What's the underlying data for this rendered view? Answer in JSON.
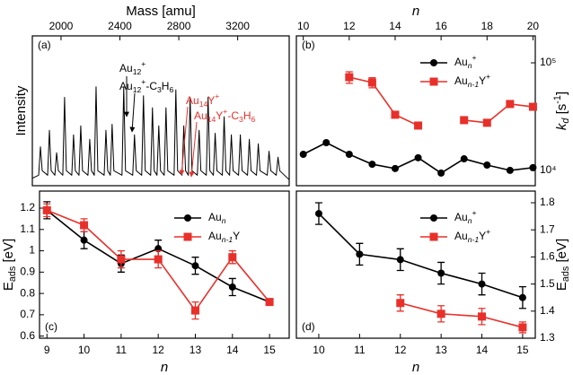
{
  "chart_data": [
    {
      "type": "line",
      "panel_label": "(a)",
      "panel_label_corner": "upper left",
      "x_label": [
        {
          "text": "Mass [amu]"
        }
      ],
      "x_axis_side": "top",
      "y_label": [
        {
          "text": "Intensity"
        }
      ],
      "y_axis_side": "left",
      "xlim": [
        1805,
        3550
      ],
      "xticks": [
        2000,
        2400,
        2800,
        3200
      ],
      "ylim": [
        0,
        1
      ],
      "x": [
        1805,
        1848,
        1860,
        1872,
        1909,
        1921,
        1933,
        1958,
        1970,
        1982,
        2012,
        2024,
        2036,
        2073,
        2085,
        2097,
        2122,
        2134,
        2146,
        2183,
        2195,
        2207,
        2226,
        2238,
        2250,
        2293,
        2305,
        2317,
        2335,
        2347,
        2359,
        2414,
        2426,
        2438,
        2487,
        2499,
        2511,
        2548,
        2560,
        2572,
        2609,
        2621,
        2633,
        2652,
        2664,
        2676,
        2701,
        2713,
        2725,
        2768,
        2780,
        2792,
        2822,
        2834,
        2846,
        2865,
        2877,
        2889,
        2926,
        2938,
        2950,
        2987,
        2999,
        3011,
        3035,
        3047,
        3059,
        3096,
        3108,
        3120,
        3145,
        3157,
        3169,
        3206,
        3218,
        3230,
        3267,
        3279,
        3291,
        3328,
        3340,
        3352,
        3401,
        3413,
        3425,
        3462,
        3474,
        3486,
        3550
      ],
      "series": [
        {
          "color": "#000000",
          "values": [
            0.05,
            0.07,
            0.26,
            0.1,
            0.07,
            0.37,
            0.1,
            0.07,
            0.22,
            0.1,
            0.07,
            0.59,
            0.1,
            0.07,
            0.34,
            0.1,
            0.07,
            0.4,
            0.1,
            0.07,
            0.31,
            0.1,
            0.07,
            0.66,
            0.1,
            0.07,
            0.37,
            0.1,
            0.07,
            0.41,
            0.1,
            0.07,
            0.66,
            0.1,
            0.07,
            0.34,
            0.1,
            0.07,
            0.6,
            0.1,
            0.07,
            0.52,
            0.1,
            0.07,
            0.4,
            0.1,
            0.07,
            0.52,
            0.1,
            0.07,
            0.64,
            0.1,
            0.07,
            0.4,
            0.1,
            0.07,
            0.59,
            0.1,
            0.07,
            0.37,
            0.1,
            0.07,
            0.59,
            0.1,
            0.07,
            0.35,
            0.1,
            0.07,
            0.46,
            0.1,
            0.07,
            0.34,
            0.1,
            0.07,
            0.34,
            0.1,
            0.07,
            0.31,
            0.1,
            0.07,
            0.28,
            0.1,
            0.07,
            0.23,
            0.1,
            0.07,
            0.19,
            0.1,
            0.04
          ]
        }
      ],
      "annotations": [
        {
          "color": "#000000",
          "runs": [
            {
              "text": "Au"
            },
            {
              "text": "12",
              "shift": "sub"
            },
            {
              "text": "+",
              "shift": "sup"
            }
          ]
        },
        {
          "color": "#000000",
          "runs": [
            {
              "text": "Au"
            },
            {
              "text": "12",
              "shift": "sub"
            },
            {
              "text": "+",
              "shift": "sup"
            },
            {
              "text": "-C"
            },
            {
              "text": "3",
              "shift": "sub"
            },
            {
              "text": "H"
            },
            {
              "text": "6",
              "shift": "sub"
            }
          ]
        },
        {
          "color": "#e8302a",
          "runs": [
            {
              "text": "Au"
            },
            {
              "text": "14",
              "shift": "sub"
            },
            {
              "text": "Y"
            },
            {
              "text": "+",
              "shift": "sup"
            }
          ]
        },
        {
          "color": "#e8302a",
          "runs": [
            {
              "text": "Au"
            },
            {
              "text": "14",
              "shift": "sub"
            },
            {
              "text": "Y"
            },
            {
              "text": "+",
              "shift": "sup"
            },
            {
              "text": "-C"
            },
            {
              "text": "3",
              "shift": "sub"
            },
            {
              "text": "H"
            },
            {
              "text": "6",
              "shift": "sub"
            }
          ]
        }
      ]
    },
    {
      "type": "line",
      "panel_label": "(b)",
      "panel_label_corner": "upper left",
      "x_label": [
        {
          "text": "n",
          "italic": true
        }
      ],
      "x_axis_side": "top",
      "y_label": [
        {
          "text": "k",
          "italic": true
        },
        {
          "text": "d",
          "shift": "sub",
          "italic": true
        },
        {
          "text": " [s"
        },
        {
          "text": "-1",
          "shift": "sup"
        },
        {
          "text": "]"
        }
      ],
      "y_axis_side": "right",
      "xlim": [
        9.7,
        20.1
      ],
      "xticks": [
        10,
        12,
        14,
        16,
        18,
        20
      ],
      "y_scale": "log",
      "ylim": [
        7200,
        178000
      ],
      "yticks": [
        {
          "value": 10000,
          "label": "10⁴"
        },
        {
          "value": 100000,
          "label": "10⁵"
        }
      ],
      "legend_corner": "upper right",
      "x": [
        10,
        11,
        12,
        13,
        14,
        15,
        16,
        17,
        18,
        19,
        20
      ],
      "series": [
        {
          "name": [
            {
              "text": "Au"
            },
            {
              "text": "n",
              "shift": "sub",
              "italic": true
            },
            {
              "text": "+",
              "shift": "sup"
            }
          ],
          "color": "#000000",
          "marker": "circle",
          "values": [
            14100,
            18100,
            14100,
            11400,
            10400,
            13100,
            9440,
            12800,
            11200,
            10000,
            10600
          ]
        },
        {
          "name": [
            {
              "text": "Au"
            },
            {
              "text": "n-1",
              "shift": "sub",
              "italic": true
            },
            {
              "text": "Y"
            },
            {
              "text": "+",
              "shift": "sup"
            }
          ],
          "color": "#e8302a",
          "marker": "square",
          "values": [
            null,
            null,
            73500,
            65600,
            32900,
            26100,
            null,
            29300,
            27700,
            41400,
            39000
          ],
          "errors": [
            null,
            null,
            9000,
            7000,
            null,
            null,
            null,
            null,
            null,
            null,
            null
          ]
        }
      ]
    },
    {
      "type": "line",
      "panel_label": "(c)",
      "panel_label_corner": "lower left",
      "x_label": [
        {
          "text": "n",
          "italic": true
        }
      ],
      "x_axis_side": "bottom",
      "y_label": [
        {
          "text": "E"
        },
        {
          "text": "ads",
          "shift": "sub"
        },
        {
          "text": " [eV]"
        }
      ],
      "y_axis_side": "left",
      "xlim": [
        8.8,
        15.53
      ],
      "xticks": [
        9,
        10,
        11,
        12,
        13,
        14,
        15
      ],
      "ylim": [
        0.59,
        1.28
      ],
      "yticks": [
        0.6,
        0.7,
        0.8,
        0.9,
        1,
        1.1,
        1.2
      ],
      "legend_corner": "upper right",
      "x": [
        9,
        10,
        11,
        12,
        13,
        14,
        15
      ],
      "series": [
        {
          "name": [
            {
              "text": "Au"
            },
            {
              "text": "n",
              "shift": "sub",
              "italic": true
            }
          ],
          "color": "#000000",
          "marker": "circle",
          "values": [
            1.19,
            1.05,
            0.94,
            1.01,
            0.93,
            0.83,
            0.76
          ],
          "errors": [
            0.04,
            0.04,
            0.04,
            0.04,
            0.04,
            0.04,
            null
          ]
        },
        {
          "name": [
            {
              "text": "Au"
            },
            {
              "text": "n-1",
              "shift": "sub",
              "italic": true
            },
            {
              "text": "Y"
            }
          ],
          "color": "#e8302a",
          "marker": "square",
          "values": [
            1.19,
            1.12,
            0.96,
            0.96,
            0.72,
            0.97,
            0.76
          ],
          "errors": [
            0.03,
            0.03,
            0.04,
            0.04,
            0.04,
            0.03,
            null
          ]
        }
      ]
    },
    {
      "type": "line",
      "panel_label": "(d)",
      "panel_label_corner": "lower left",
      "x_label": [
        {
          "text": "n",
          "italic": true
        }
      ],
      "x_axis_side": "bottom",
      "y_label": [
        {
          "text": "E"
        },
        {
          "text": "ads",
          "shift": "sub"
        },
        {
          "text": " [eV]"
        }
      ],
      "y_axis_side": "right",
      "xlim": [
        9.45,
        15.31
      ],
      "xticks": [
        10,
        11,
        12,
        13,
        14,
        15
      ],
      "ylim": [
        1.3,
        1.843
      ],
      "yticks": [
        1.3,
        1.4,
        1.5,
        1.6,
        1.7,
        1.8
      ],
      "legend_corner": "upper right",
      "x": [
        10,
        11,
        12,
        13,
        14,
        15
      ],
      "series": [
        {
          "name": [
            {
              "text": "Au"
            },
            {
              "text": "n",
              "shift": "sub",
              "italic": true
            },
            {
              "text": "+",
              "shift": "sup"
            }
          ],
          "color": "#000000",
          "marker": "circle",
          "values": [
            1.76,
            1.61,
            1.59,
            1.54,
            1.5,
            1.45
          ],
          "errors": [
            0.04,
            0.04,
            0.04,
            0.04,
            0.04,
            0.04
          ]
        },
        {
          "name": [
            {
              "text": "Au"
            },
            {
              "text": "n-1",
              "shift": "sub",
              "italic": true
            },
            {
              "text": "Y"
            },
            {
              "text": "+",
              "shift": "sup"
            }
          ],
          "color": "#e8302a",
          "marker": "square",
          "values": [
            null,
            null,
            1.43,
            1.39,
            1.38,
            1.34
          ],
          "errors": [
            null,
            null,
            0.03,
            0.03,
            0.03,
            0.02
          ]
        }
      ]
    }
  ]
}
